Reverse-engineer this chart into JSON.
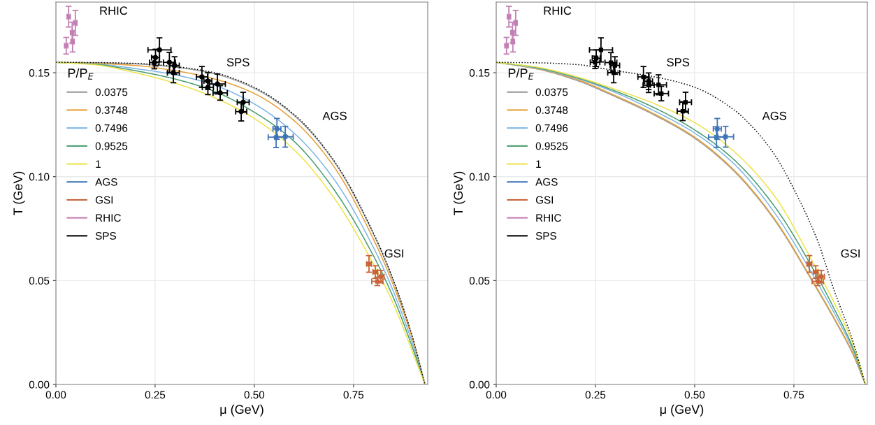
{
  "chart_data": [
    {
      "type": "line",
      "xlabel": "μ (GeV)",
      "ylabel": "T (GeV)",
      "legend_title": "P/P$_{E}$",
      "legend": "left",
      "grid": true,
      "xlim": [
        0,
        0.937
      ],
      "ylim": [
        0,
        0.184
      ],
      "xticks": [
        {
          "value": 0,
          "label": "0.00"
        },
        {
          "value": 0.25,
          "label": "0.25"
        },
        {
          "value": 0.5,
          "label": "0.50"
        },
        {
          "value": 0.75,
          "label": "0.75"
        }
      ],
      "yticks": [
        {
          "value": 0,
          "label": "0.00"
        },
        {
          "value": 0.05,
          "label": "0.05"
        },
        {
          "value": 0.1,
          "label": "0.10"
        },
        {
          "value": 0.15,
          "label": "0.15"
        }
      ],
      "annotations": [
        "RHIC",
        "SPS",
        "AGS",
        "GSI"
      ],
      "series": [
        {
          "name": "0.0375",
          "color": "#999999",
          "x": [
            0,
            0.1,
            0.2,
            0.3,
            0.4,
            0.5,
            0.6,
            0.7,
            0.8,
            0.85,
            0.9,
            0.93
          ],
          "values": [
            0.155,
            0.1548,
            0.1543,
            0.1527,
            0.1495,
            0.1425,
            0.1295,
            0.1075,
            0.0725,
            0.05,
            0.0215,
            0
          ]
        },
        {
          "name": "0.3748",
          "color": "#e69f38",
          "x": [
            0,
            0.1,
            0.2,
            0.3,
            0.4,
            0.5,
            0.6,
            0.7,
            0.8,
            0.85,
            0.9,
            0.93
          ],
          "values": [
            0.155,
            0.1545,
            0.1535,
            0.151,
            0.147,
            0.14,
            0.127,
            0.105,
            0.07,
            0.048,
            0.021,
            0
          ]
        },
        {
          "name": "0.7496",
          "color": "#7fb6e6",
          "x": [
            0,
            0.1,
            0.2,
            0.3,
            0.4,
            0.5,
            0.6,
            0.7,
            0.8,
            0.85,
            0.9,
            0.93
          ],
          "values": [
            0.155,
            0.1542,
            0.152,
            0.149,
            0.144,
            0.135,
            0.121,
            0.099,
            0.066,
            0.045,
            0.019,
            0
          ]
        },
        {
          "name": "0.9525",
          "color": "#4a9d6f",
          "x": [
            0,
            0.1,
            0.2,
            0.3,
            0.4,
            0.5,
            0.6,
            0.7,
            0.8,
            0.85,
            0.9,
            0.93
          ],
          "values": [
            0.155,
            0.154,
            0.151,
            0.147,
            0.141,
            0.131,
            0.117,
            0.094,
            0.062,
            0.042,
            0.017,
            0
          ]
        },
        {
          "name": "1",
          "color": "#ede34a",
          "x": [
            0,
            0.1,
            0.2,
            0.3,
            0.4,
            0.5,
            0.6,
            0.7,
            0.8,
            0.85,
            0.9,
            0.93
          ],
          "values": [
            0.155,
            0.1538,
            0.15,
            0.145,
            0.138,
            0.128,
            0.113,
            0.09,
            0.058,
            0.039,
            0.015,
            0
          ]
        },
        {
          "color": "#000000",
          "line_style": "dotted",
          "x": [
            0,
            0.1,
            0.2,
            0.3,
            0.4,
            0.5,
            0.6,
            0.7,
            0.8,
            0.85,
            0.9,
            0.93
          ],
          "values": [
            0.155,
            0.1549,
            0.1545,
            0.153,
            0.15,
            0.143,
            0.13,
            0.108,
            0.073,
            0.0505,
            0.022,
            0
          ]
        },
        {
          "type": "scatter",
          "name": "AGS",
          "color": "#3f75b8",
          "marker": "circle",
          "x": [
            0.557,
            0.555,
            0.578
          ],
          "values": [
            0.123,
            0.119,
            0.1192
          ],
          "xerrors": [
            0.01,
            0.02,
            0.02
          ],
          "errors": [
            0.005,
            0.005,
            0.005
          ]
        },
        {
          "type": "scatter",
          "name": "GSI",
          "color": "#c8643a",
          "marker": "square",
          "x": [
            0.789,
            0.805,
            0.819,
            0.81
          ],
          "values": [
            0.058,
            0.0541,
            0.0519,
            0.0496
          ],
          "xerrors": [
            0.006,
            0.006,
            0.008,
            0.014
          ],
          "errors": [
            0.004,
            0.003,
            0.003,
            0.002
          ]
        },
        {
          "type": "scatter",
          "name": "RHIC",
          "color": "#c27fb3",
          "marker": "square",
          "x": [
            0.032,
            0.049,
            0.041,
            0.026,
            0.042
          ],
          "values": [
            0.177,
            0.174,
            0.1693,
            0.163,
            0.165
          ],
          "xerrors": [
            0.004,
            0.004,
            0.004,
            0.004,
            0.004
          ],
          "errors": [
            0.005,
            0.006,
            0.005,
            0.004,
            0.005
          ]
        },
        {
          "type": "scatter",
          "name": "SPS",
          "color": "#000000",
          "marker": "circle",
          "x": [
            0.261,
            0.251,
            0.248,
            0.286,
            0.299,
            0.296,
            0.368,
            0.383,
            0.383,
            0.407,
            0.414,
            0.472,
            0.467
          ],
          "values": [
            0.161,
            0.1573,
            0.1549,
            0.155,
            0.1535,
            0.15,
            0.148,
            0.146,
            0.143,
            0.1446,
            0.1403,
            0.1358,
            0.1313
          ],
          "xerrors": [
            0.029,
            0.01,
            0.012,
            0.015,
            0.012,
            0.015,
            0.014,
            0.01,
            0.014,
            0.02,
            0.018,
            0.015,
            0.014
          ],
          "errors": [
            0.0058,
            0.004,
            0.003,
            0.0048,
            0.0042,
            0.0048,
            0.005,
            0.004,
            0.0035,
            0.0048,
            0.0035,
            0.0048,
            0.0045
          ]
        }
      ]
    },
    {
      "type": "line",
      "xlabel": "μ (GeV)",
      "ylabel": "T (GeV)",
      "legend_title": "P/P$_{E}$",
      "legend": "left",
      "grid": true,
      "xlim": [
        0,
        0.935
      ],
      "ylim": [
        0,
        0.184
      ],
      "xticks": [
        {
          "value": 0,
          "label": "0.00"
        },
        {
          "value": 0.25,
          "label": "0.25"
        },
        {
          "value": 0.5,
          "label": "0.50"
        },
        {
          "value": 0.75,
          "label": "0.75"
        }
      ],
      "yticks": [
        {
          "value": 0,
          "label": "0.00"
        },
        {
          "value": 0.05,
          "label": "0.05"
        },
        {
          "value": 0.1,
          "label": "0.10"
        },
        {
          "value": 0.15,
          "label": "0.15"
        }
      ],
      "annotations": [
        "RHIC",
        "SPS",
        "AGS",
        "GSI"
      ],
      "series": [
        {
          "name": "0.0375",
          "color": "#999999",
          "x": [
            0,
            0.1,
            0.2,
            0.3,
            0.4,
            0.5,
            0.6,
            0.7,
            0.8,
            0.85,
            0.9,
            0.93
          ],
          "values": [
            0.155,
            0.152,
            0.1465,
            0.1385,
            0.1295,
            0.1185,
            0.1025,
            0.0795,
            0.0485,
            0.032,
            0.014,
            0
          ]
        },
        {
          "name": "0.3748",
          "color": "#e69f38",
          "x": [
            0,
            0.1,
            0.2,
            0.3,
            0.4,
            0.5,
            0.6,
            0.7,
            0.8,
            0.85,
            0.9,
            0.93
          ],
          "values": [
            0.155,
            0.152,
            0.147,
            0.139,
            0.13,
            0.119,
            0.103,
            0.08,
            0.049,
            0.0325,
            0.0145,
            0
          ]
        },
        {
          "name": "0.7496",
          "color": "#7fb6e6",
          "x": [
            0,
            0.1,
            0.2,
            0.3,
            0.4,
            0.5,
            0.6,
            0.7,
            0.8,
            0.85,
            0.9,
            0.93
          ],
          "values": [
            0.155,
            0.1522,
            0.1475,
            0.1405,
            0.1315,
            0.121,
            0.106,
            0.083,
            0.052,
            0.035,
            0.016,
            0
          ]
        },
        {
          "name": "0.9525",
          "color": "#4a9d6f",
          "x": [
            0,
            0.1,
            0.2,
            0.3,
            0.4,
            0.5,
            0.6,
            0.7,
            0.8,
            0.85,
            0.9,
            0.93
          ],
          "values": [
            0.155,
            0.1525,
            0.1478,
            0.1412,
            0.133,
            0.1225,
            0.108,
            0.086,
            0.055,
            0.037,
            0.017,
            0
          ]
        },
        {
          "name": "1",
          "color": "#ede34a",
          "x": [
            0,
            0.1,
            0.2,
            0.3,
            0.4,
            0.5,
            0.6,
            0.7,
            0.8,
            0.85,
            0.9,
            0.93
          ],
          "values": [
            0.155,
            0.1528,
            0.1482,
            0.142,
            0.135,
            0.126,
            0.112,
            0.091,
            0.058,
            0.04,
            0.019,
            0
          ]
        },
        {
          "color": "#000000",
          "line_style": "dotted",
          "x": [
            0,
            0.1,
            0.2,
            0.3,
            0.4,
            0.5,
            0.6,
            0.65,
            0.7,
            0.75,
            0.81,
            0.85,
            0.9,
            0.93
          ],
          "values": [
            0.155,
            0.1548,
            0.154,
            0.151,
            0.148,
            0.143,
            0.132,
            0.123,
            0.111,
            0.094,
            0.069,
            0.046,
            0.02,
            0
          ]
        },
        {
          "type": "scatter",
          "name": "AGS",
          "color": "#3f75b8",
          "marker": "square",
          "x": [
            0.557,
            0.555,
            0.578
          ],
          "values": [
            0.123,
            0.119,
            0.1192
          ],
          "xerrors": [
            0.01,
            0.02,
            0.02
          ],
          "errors": [
            0.005,
            0.005,
            0.005
          ]
        },
        {
          "type": "scatter",
          "name": "GSI",
          "color": "#c8643a",
          "marker": "square",
          "x": [
            0.789,
            0.805,
            0.819,
            0.81
          ],
          "values": [
            0.058,
            0.0541,
            0.0519,
            0.0496
          ],
          "xerrors": [
            0.006,
            0.006,
            0.008,
            0.014
          ],
          "errors": [
            0.004,
            0.003,
            0.003,
            0.002
          ]
        },
        {
          "type": "scatter",
          "name": "RHIC",
          "color": "#c27fb3",
          "marker": "square",
          "x": [
            0.032,
            0.049,
            0.041,
            0.026,
            0.042
          ],
          "values": [
            0.177,
            0.174,
            0.1693,
            0.163,
            0.165
          ],
          "xerrors": [
            0.004,
            0.004,
            0.004,
            0.004,
            0.004
          ],
          "errors": [
            0.005,
            0.006,
            0.005,
            0.004,
            0.005
          ]
        },
        {
          "type": "scatter",
          "name": "SPS",
          "color": "#000000",
          "marker": "square",
          "x": [
            0.264,
            0.252,
            0.249,
            0.289,
            0.299,
            0.296,
            0.371,
            0.384,
            0.384,
            0.409,
            0.416,
            0.477,
            0.47
          ],
          "values": [
            0.161,
            0.157,
            0.155,
            0.1549,
            0.1535,
            0.15,
            0.148,
            0.1459,
            0.144,
            0.1442,
            0.14,
            0.1358,
            0.1315
          ],
          "xerrors": [
            0.029,
            0.01,
            0.012,
            0.015,
            0.012,
            0.015,
            0.014,
            0.01,
            0.014,
            0.02,
            0.018,
            0.015,
            0.014
          ],
          "errors": [
            0.0058,
            0.004,
            0.003,
            0.0048,
            0.0042,
            0.0048,
            0.005,
            0.004,
            0.0035,
            0.0048,
            0.0035,
            0.0048,
            0.0045
          ]
        }
      ]
    }
  ]
}
